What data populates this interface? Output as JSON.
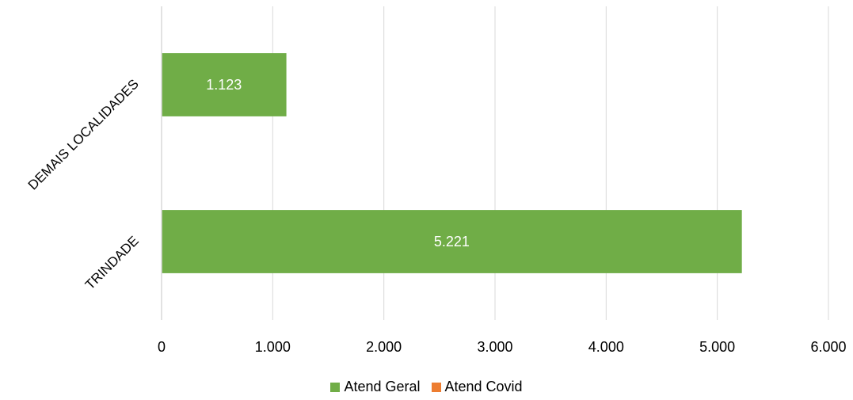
{
  "chart_data": {
    "type": "bar",
    "orientation": "horizontal",
    "stacked": true,
    "title": "",
    "xlabel": "",
    "ylabel": "",
    "categories": [
      "DEMAIS LOCALIDADES",
      "TRINDADE"
    ],
    "series": [
      {
        "name": "Atend Geral",
        "values": [
          1123,
          5221
        ],
        "labels": [
          "1.123",
          "5.221"
        ],
        "color": "#70AD47"
      },
      {
        "name": "Atend Covid",
        "values": [
          0,
          0
        ],
        "labels": [
          "",
          ""
        ],
        "color": "#ED7D31"
      }
    ],
    "xlim": [
      0,
      6000
    ],
    "x_ticks": [
      0,
      1000,
      2000,
      3000,
      4000,
      5000,
      6000
    ],
    "x_tick_labels": [
      "0",
      "1.000",
      "2.000",
      "3.000",
      "4.000",
      "5.000",
      "6.000"
    ],
    "grid": "vertical",
    "legend_position": "bottom"
  },
  "colors": {
    "gridline": "#D9D9D9",
    "axis_line": "#D9D9D9"
  }
}
